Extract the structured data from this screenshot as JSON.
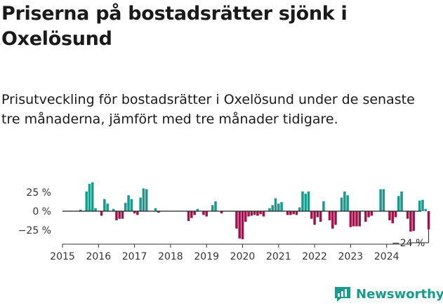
{
  "title": "Priserna på bostadsrätter sjönk i Oxelösund",
  "subtitle": "Prisutveckling för bostadsrätter i Oxelösund under de senaste tre månaderna, jämfört med tre månader tidigare.",
  "brand": {
    "name": "Newsworthy",
    "icon": "newsworthy-logo-icon"
  },
  "colors": {
    "positive": "#1a9a8c",
    "negative": "#a0134a",
    "axis": "#333333"
  },
  "chart_data": {
    "type": "bar",
    "title": "",
    "xlabel": "",
    "ylabel": "",
    "unit": "%",
    "ylim": [
      -40,
      40
    ],
    "xlim": [
      "2015-01",
      "2024-12"
    ],
    "y_ticks": [
      {
        "value": 25,
        "label": "25 %"
      },
      {
        "value": 0,
        "label": "0 %"
      },
      {
        "value": -25,
        "label": "−25 %"
      }
    ],
    "x_ticks": [
      "2015",
      "2016",
      "2017",
      "2018",
      "2019",
      "2020",
      "2021",
      "2022",
      "2023",
      "2024"
    ],
    "last_value_label": "−24 %",
    "series": [
      {
        "start": "2015-07",
        "values": [
          2,
          0,
          26,
          36,
          38,
          4,
          0,
          -6,
          16,
          10,
          0,
          3,
          -12,
          -10,
          -10,
          11,
          21,
          16,
          -3,
          -5,
          18,
          30,
          29,
          0,
          0,
          4,
          -2,
          0,
          0,
          0,
          0,
          0,
          0,
          0,
          0,
          0,
          -13,
          -9,
          -5,
          3,
          0,
          -5,
          -7,
          0,
          8,
          13,
          0,
          -3,
          0,
          0,
          0,
          0,
          -23,
          -36,
          -37,
          -14,
          -7,
          -6,
          -5,
          -6,
          -4,
          -7,
          0,
          4,
          8,
          17,
          10,
          12,
          0,
          -5,
          -5,
          -4,
          -5,
          5,
          26,
          23,
          26,
          -10,
          -18,
          -8,
          -14,
          13,
          0,
          -12,
          -23,
          -18,
          0,
          18,
          26,
          21,
          -21,
          -20,
          -20,
          -20,
          0,
          -14,
          -8,
          -6,
          0,
          0,
          29,
          29,
          0,
          -12,
          -16,
          -8,
          20,
          26,
          0,
          -10,
          -27,
          -26,
          0,
          14,
          15,
          3,
          -24
        ]
      }
    ]
  }
}
